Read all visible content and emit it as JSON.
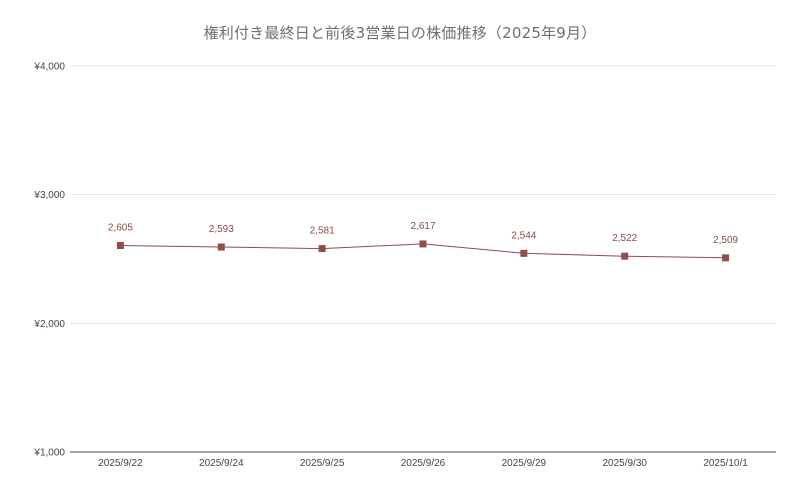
{
  "chart_data": {
    "type": "line",
    "title": "権利付き最終日と前後3営業日の株価推移（2025年9月）",
    "categories": [
      "2025/9/22",
      "2025/9/24",
      "2025/9/25",
      "2025/9/26",
      "2025/9/29",
      "2025/9/30",
      "2025/10/1"
    ],
    "series": [
      {
        "values": [
          2605,
          2593,
          2581,
          2617,
          2544,
          2522,
          2509
        ],
        "labels": [
          "2,605",
          "2,593",
          "2,581",
          "2,617",
          "2,544",
          "2,522",
          "2,509"
        ],
        "color": "#8e4e4b"
      }
    ],
    "ylim": [
      1000,
      4000
    ],
    "yticks": [
      1000,
      2000,
      3000,
      4000
    ],
    "ytick_labels": [
      "¥1,000",
      "¥2,000",
      "¥3,000",
      "¥4,000"
    ],
    "grid": true,
    "legend": "none",
    "colors": {
      "line": "#8e4e4b",
      "marker": "#8e4e4b",
      "grid": "#e3e3e3",
      "axis": "#444444"
    }
  }
}
